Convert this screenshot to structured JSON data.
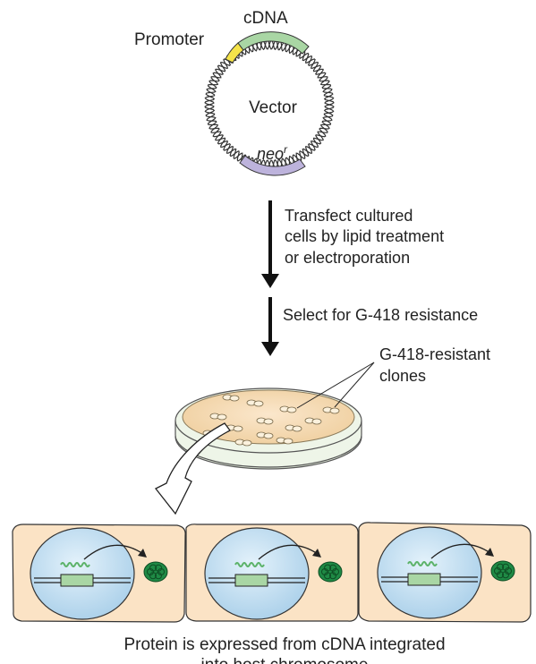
{
  "vector": {
    "promoter_label": "Promoter",
    "cdna_label": "cDNA",
    "vector_label": "Vector",
    "neo_label": "neo",
    "neo_superscript": "r",
    "colors": {
      "promoter": "#f5e44a",
      "cdna": "#a9d6a4",
      "neo": "#bdb3dc"
    }
  },
  "steps": {
    "transfect": [
      "Transfect cultured",
      "cells by lipid treatment",
      "or electroporation"
    ],
    "select": "Select for G-418 resistance"
  },
  "dish": {
    "clones_label": [
      "G-418-resistant",
      "clones"
    ],
    "colors": {
      "medium": "#f6dcb7",
      "rim": "#e3f0dc"
    }
  },
  "cells": {
    "count": 3,
    "colors": {
      "cytoplasm": "#fbe3c5",
      "nucleus": "#cfe6f5",
      "protein": "#1f8a45",
      "gene": "#a9d6a4"
    }
  },
  "caption": [
    "Protein is expressed from cDNA integrated",
    "into host chromosome"
  ]
}
